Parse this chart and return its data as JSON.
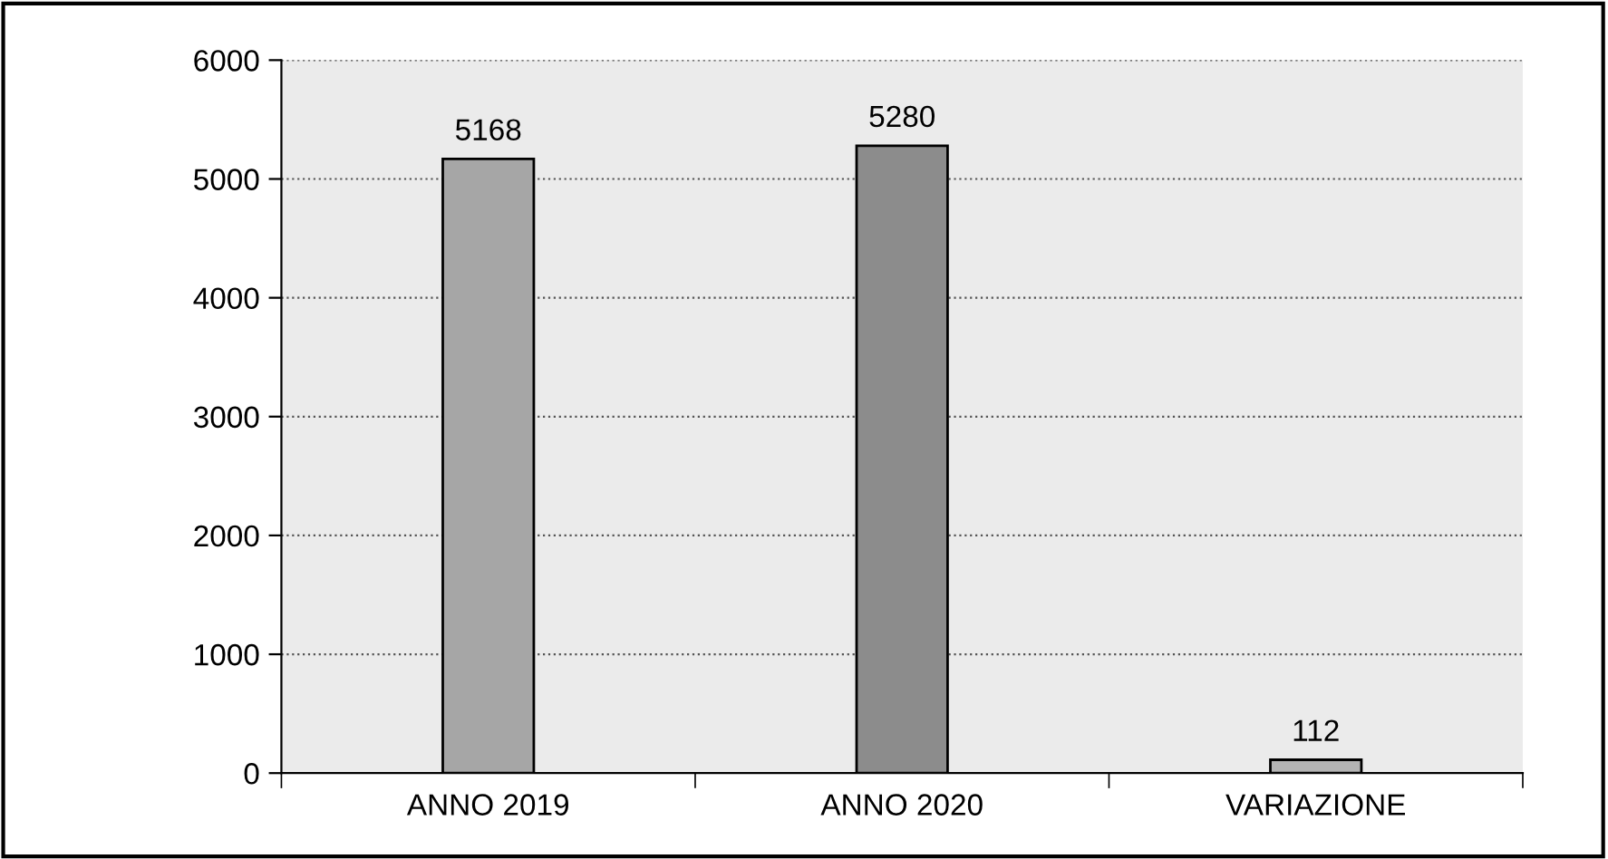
{
  "chart_data": {
    "type": "bar",
    "categories": [
      "ANNO 2019",
      "ANNO 2020",
      "VARIAZIONE"
    ],
    "values": [
      5168,
      5280,
      112
    ],
    "colors": [
      "#a6a6a6",
      "#8c8c8c",
      "#b4b4b4"
    ],
    "ylim": [
      0,
      6000
    ],
    "yticks": [
      0,
      1000,
      2000,
      3000,
      4000,
      5000,
      6000
    ],
    "grid": "y",
    "data_labels": true
  }
}
